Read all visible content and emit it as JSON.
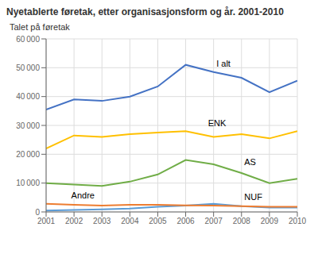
{
  "chart_data": {
    "type": "line",
    "title": "Nyetablerte føretak, etter organisasjonsform og år. 2001-2010",
    "y_label": "Talet på føretak",
    "x": [
      2001,
      2002,
      2003,
      2004,
      2005,
      2006,
      2007,
      2008,
      2009,
      2010
    ],
    "series": [
      {
        "name": "I alt",
        "color": "#4472C4",
        "values": [
          35500,
          39000,
          38500,
          40000,
          43500,
          51000,
          48500,
          46500,
          41500,
          45500
        ]
      },
      {
        "name": "ENK",
        "color": "#FFC000",
        "values": [
          22000,
          26500,
          26000,
          27000,
          27500,
          28000,
          26000,
          27000,
          25500,
          28000
        ]
      },
      {
        "name": "AS",
        "color": "#70AD47",
        "values": [
          10000,
          9500,
          9000,
          10500,
          13000,
          18000,
          16500,
          13500,
          10000,
          11500
        ]
      },
      {
        "name": "NUF",
        "color": "#5B9BD5",
        "values": [
          500,
          700,
          900,
          1200,
          1800,
          2200,
          2800,
          2000,
          1500,
          1500
        ]
      },
      {
        "name": "Andre",
        "color": "#ED7D31",
        "values": [
          2800,
          2500,
          2200,
          2500,
          2500,
          2300,
          2200,
          2000,
          1800,
          1800
        ]
      }
    ],
    "annotations": [
      {
        "text": "I alt",
        "x": 2007.1,
        "y": 49800
      },
      {
        "text": "ENK",
        "x": 2006.8,
        "y": 29200
      },
      {
        "text": "AS",
        "x": 2008.1,
        "y": 15700
      },
      {
        "text": "NUF",
        "x": 2008.1,
        "y": 3500
      },
      {
        "text": "Andre",
        "x": 2001.9,
        "y": 4000
      }
    ],
    "xlim": [
      2001,
      2010
    ],
    "xticks": [
      2001,
      2002,
      2003,
      2004,
      2005,
      2006,
      2007,
      2008,
      2009,
      2010
    ],
    "ylim": [
      0,
      60000
    ],
    "yticks": [
      0,
      {
        "value": 10000,
        "label": "10 000"
      },
      {
        "value": 20000,
        "label": "20 000"
      },
      {
        "value": 30000,
        "label": "30 000"
      },
      {
        "value": 40000,
        "label": "40 000"
      },
      {
        "value": 50000,
        "label": "50 000"
      },
      {
        "value": 60000,
        "label": "60 000"
      }
    ],
    "grid": true
  }
}
